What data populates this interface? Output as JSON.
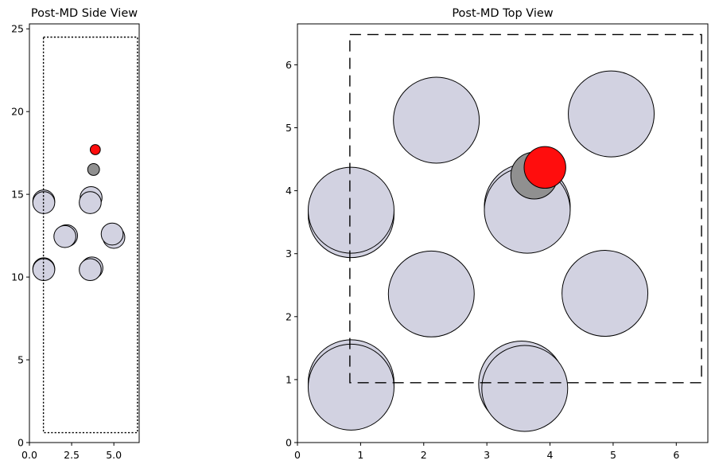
{
  "chart_data": [
    {
      "type": "scatter",
      "title": "Post-MD Side View",
      "xlim": [
        0,
        6.5
      ],
      "ylim": [
        0,
        25.3
      ],
      "x_ticks": [
        0,
        2.5,
        5
      ],
      "x_tick_labels": [
        "0.0",
        "2.5",
        "5.0"
      ],
      "y_ticks": [
        0,
        5,
        10,
        15,
        20,
        25
      ],
      "y_tick_labels": [
        "0",
        "5",
        "10",
        "15",
        "20",
        "25"
      ],
      "cell_box": {
        "x0": 0.83,
        "x1": 6.4,
        "y0": 0.6,
        "y1": 24.5,
        "style": "dotted"
      },
      "atoms": [
        {
          "x": 0.85,
          "y": 14.6,
          "r": 0.65,
          "color": "#d2d2e1"
        },
        {
          "x": 0.85,
          "y": 14.5,
          "r": 0.65,
          "color": "#d2d2e1"
        },
        {
          "x": 3.65,
          "y": 14.8,
          "r": 0.65,
          "color": "#d2d2e1"
        },
        {
          "x": 3.6,
          "y": 14.5,
          "r": 0.65,
          "color": "#d2d2e1"
        },
        {
          "x": 2.2,
          "y": 12.5,
          "r": 0.65,
          "color": "#d2d2e1"
        },
        {
          "x": 2.1,
          "y": 12.45,
          "r": 0.65,
          "color": "#d2d2e1"
        },
        {
          "x": 5.0,
          "y": 12.4,
          "r": 0.65,
          "color": "#d2d2e1"
        },
        {
          "x": 4.9,
          "y": 12.6,
          "r": 0.65,
          "color": "#d2d2e1"
        },
        {
          "x": 0.85,
          "y": 10.5,
          "r": 0.65,
          "color": "#d2d2e1"
        },
        {
          "x": 0.85,
          "y": 10.45,
          "r": 0.65,
          "color": "#d2d2e1"
        },
        {
          "x": 3.7,
          "y": 10.55,
          "r": 0.65,
          "color": "#d2d2e1"
        },
        {
          "x": 3.6,
          "y": 10.45,
          "r": 0.65,
          "color": "#d2d2e1"
        },
        {
          "x": 3.8,
          "y": 16.5,
          "r": 0.35,
          "color": "#909090"
        },
        {
          "x": 3.9,
          "y": 17.7,
          "r": 0.3,
          "color": "#ff0d0d"
        }
      ]
    },
    {
      "type": "scatter",
      "title": "Post-MD Top View",
      "xlim": [
        0,
        6.5
      ],
      "ylim": [
        0,
        6.65
      ],
      "x_ticks": [
        0,
        1,
        2,
        3,
        4,
        5,
        6
      ],
      "x_tick_labels": [
        "0",
        "1",
        "2",
        "3",
        "4",
        "5",
        "6"
      ],
      "y_ticks": [
        0,
        1,
        2,
        3,
        4,
        5,
        6
      ],
      "y_tick_labels": [
        "0",
        "1",
        "2",
        "3",
        "4",
        "5",
        "6"
      ],
      "cell_box": {
        "x0": 0.83,
        "x1": 6.4,
        "y0": 0.95,
        "y1": 6.48,
        "style": "dashed"
      },
      "atoms": [
        {
          "x": 0.85,
          "y": 0.95,
          "r": 0.68,
          "color": "#d2d2e1"
        },
        {
          "x": 0.85,
          "y": 0.88,
          "r": 0.68,
          "color": "#d2d2e1"
        },
        {
          "x": 3.55,
          "y": 0.93,
          "r": 0.68,
          "color": "#d2d2e1"
        },
        {
          "x": 3.6,
          "y": 0.86,
          "r": 0.68,
          "color": "#d2d2e1"
        },
        {
          "x": 2.12,
          "y": 2.36,
          "r": 0.68,
          "color": "#d2d2e1"
        },
        {
          "x": 4.87,
          "y": 2.37,
          "r": 0.68,
          "color": "#d2d2e1"
        },
        {
          "x": 0.85,
          "y": 3.62,
          "r": 0.68,
          "color": "#d2d2e1"
        },
        {
          "x": 0.85,
          "y": 3.69,
          "r": 0.68,
          "color": "#d2d2e1"
        },
        {
          "x": 3.64,
          "y": 3.75,
          "r": 0.68,
          "color": "#d2d2e1"
        },
        {
          "x": 3.64,
          "y": 3.69,
          "r": 0.68,
          "color": "#d2d2e1"
        },
        {
          "x": 2.2,
          "y": 5.12,
          "r": 0.68,
          "color": "#d2d2e1"
        },
        {
          "x": 4.97,
          "y": 5.22,
          "r": 0.68,
          "color": "#d2d2e1"
        },
        {
          "x": 3.75,
          "y": 4.24,
          "r": 0.37,
          "color": "#909090"
        },
        {
          "x": 3.92,
          "y": 4.37,
          "r": 0.33,
          "color": "#ff0d0d"
        }
      ]
    }
  ]
}
